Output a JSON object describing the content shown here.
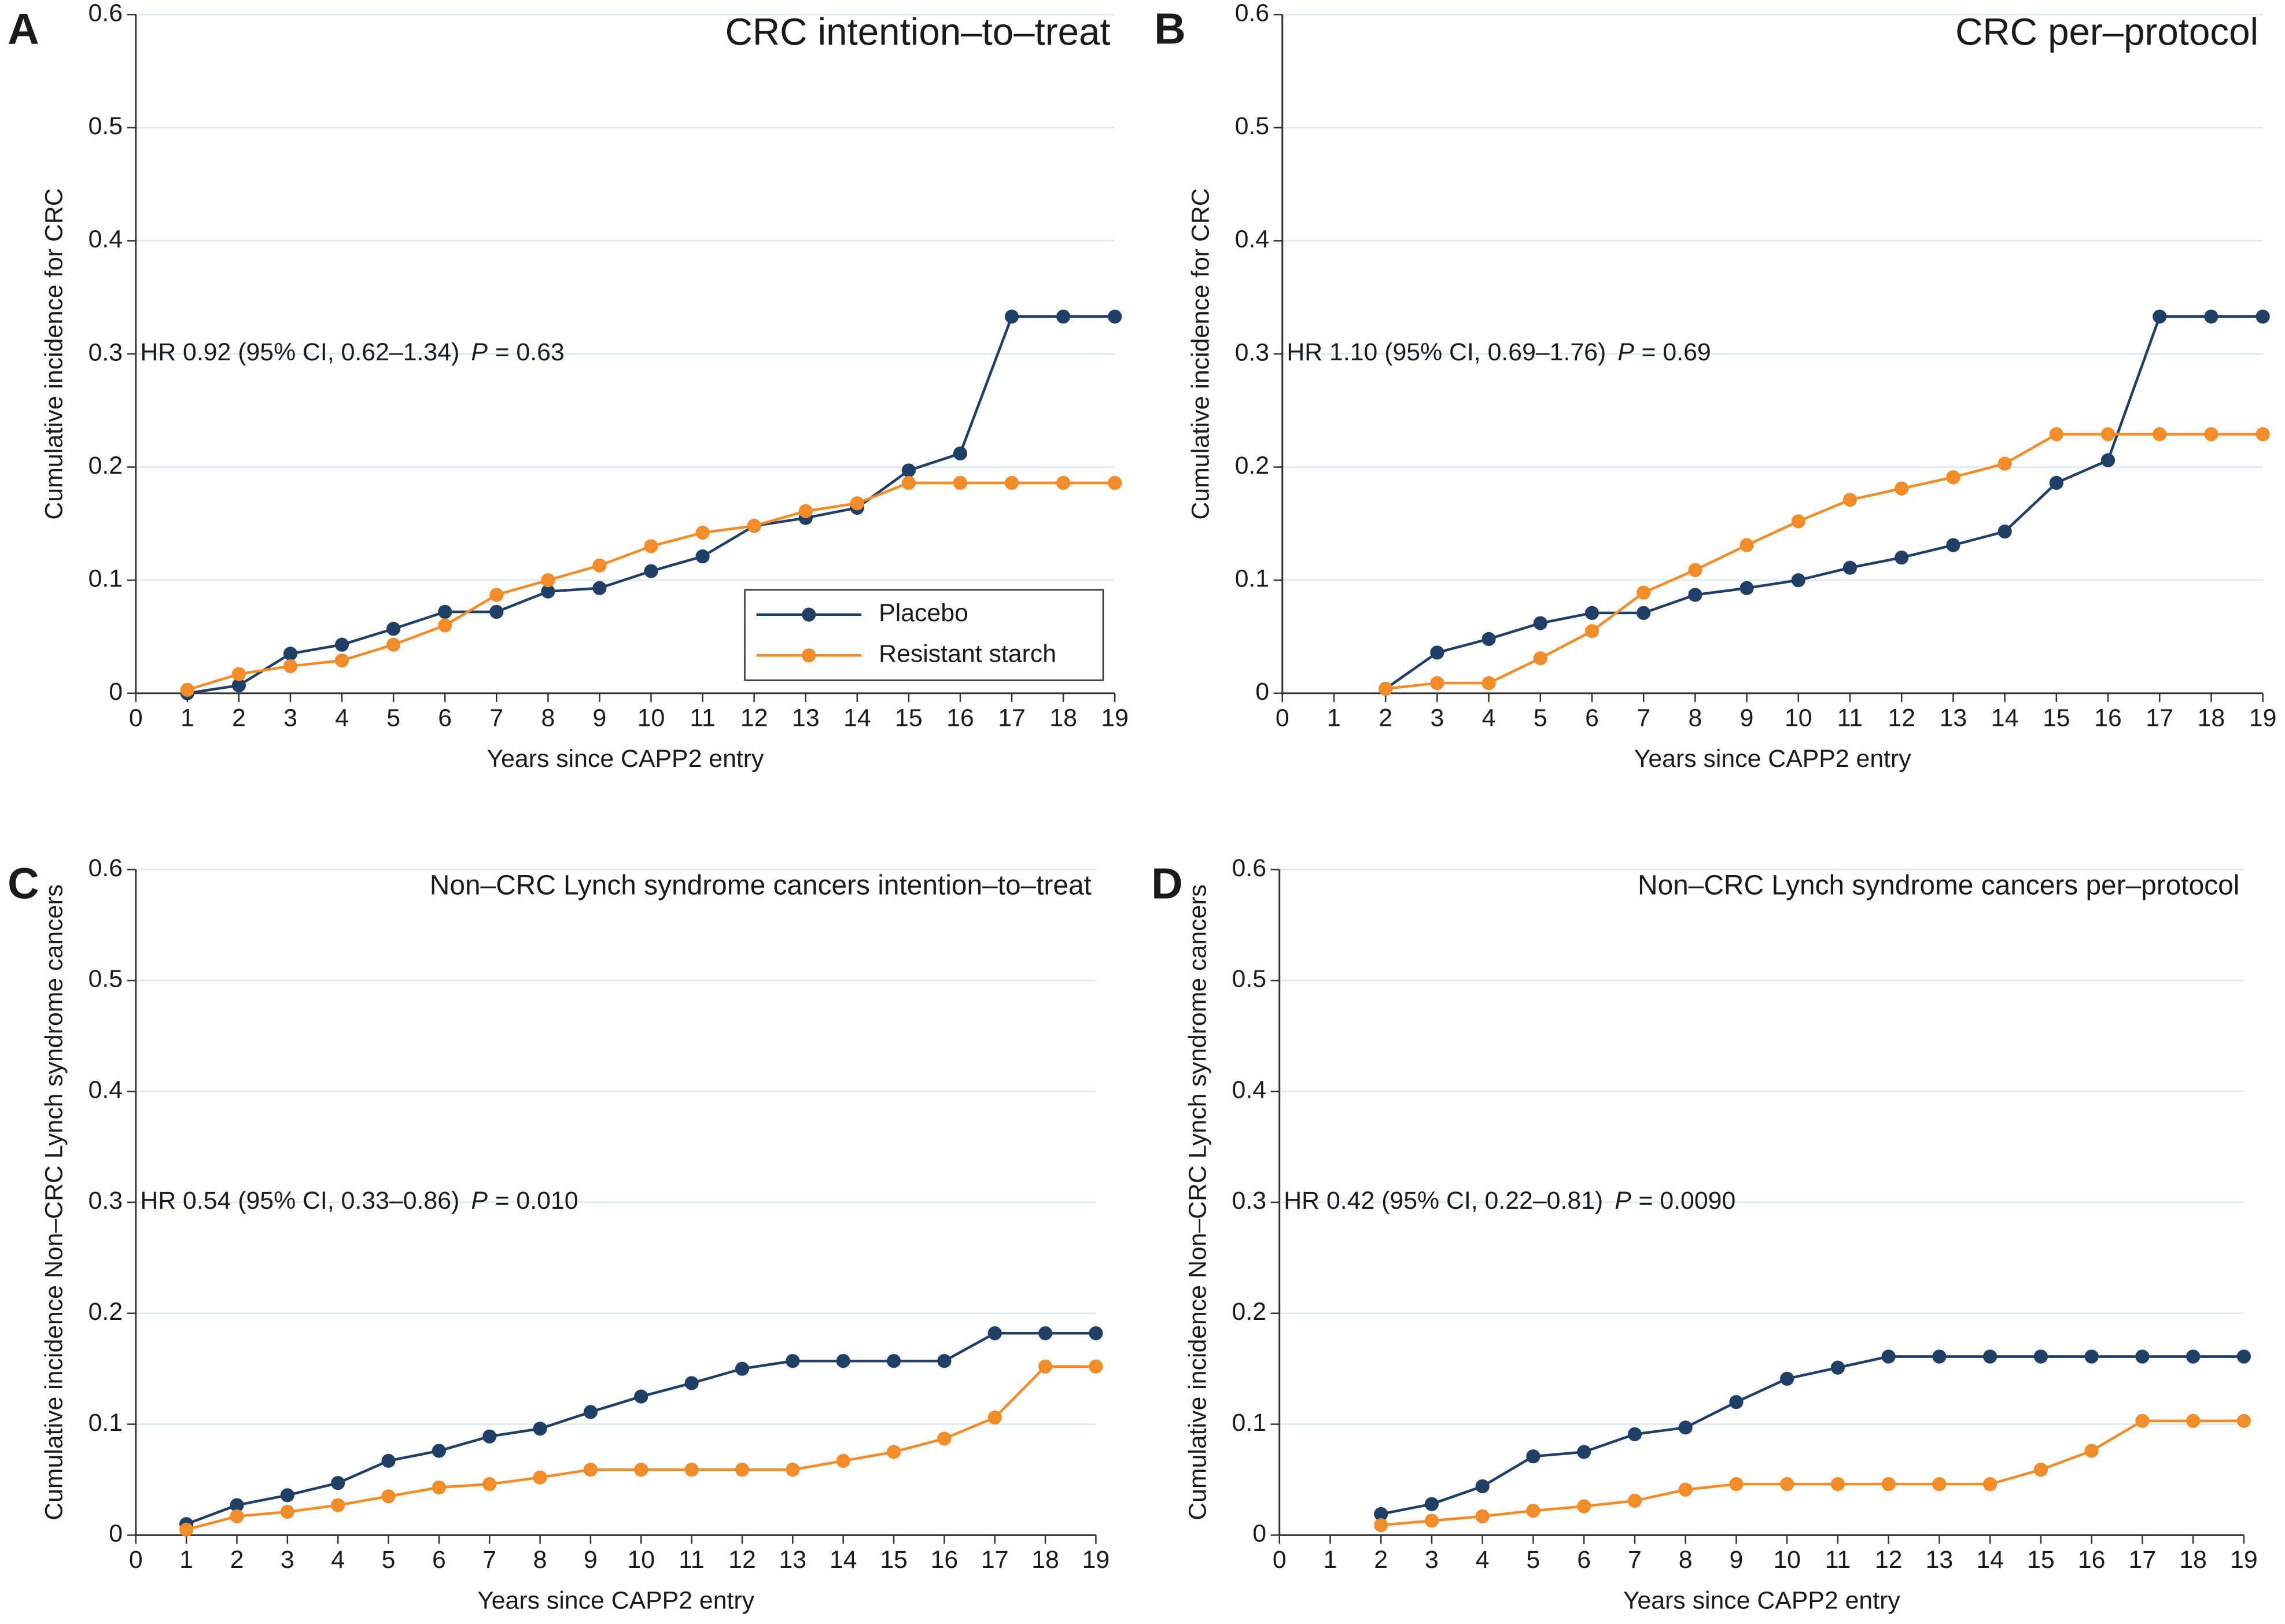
{
  "chart_data": [
    {
      "type": "line",
      "panel": "A",
      "title": "CRC intention–to–treat",
      "title_size": "large",
      "xlabel": "Years since CAPP2 entry",
      "ylabel": "Cumulative incidence for CRC",
      "annotation": {
        "text": "HR 0.92 (95% CI, 0.62–1.34)",
        "p_label": "P",
        "p_value": "= 0.63",
        "y": 0.3
      },
      "xlim": [
        0,
        19
      ],
      "xticks": [
        0,
        1,
        2,
        3,
        4,
        5,
        6,
        7,
        8,
        9,
        10,
        11,
        12,
        13,
        14,
        15,
        16,
        17,
        18,
        19
      ],
      "ylim": [
        0,
        0.6
      ],
      "yticks": [
        0,
        0.1,
        0.2,
        0.3,
        0.4,
        0.5,
        0.6
      ],
      "grid": true,
      "legend": "lower right",
      "series": [
        {
          "name": "Placebo",
          "color": "#1f3f66",
          "x": [
            1,
            2,
            3,
            4,
            5,
            6,
            7,
            8,
            9,
            10,
            11,
            12,
            13,
            14,
            15,
            16,
            17,
            18,
            19
          ],
          "values": [
            0,
            0.007,
            0.035,
            0.043,
            0.057,
            0.072,
            0.072,
            0.09,
            0.093,
            0.108,
            0.121,
            0.148,
            0.155,
            0.164,
            0.197,
            0.212,
            0.333,
            0.333,
            0.333
          ]
        },
        {
          "name": "Resistant starch",
          "color": "#f28c28",
          "x": [
            1,
            2,
            3,
            4,
            5,
            6,
            7,
            8,
            9,
            10,
            11,
            12,
            13,
            14,
            15,
            16,
            17,
            18,
            19
          ],
          "values": [
            0.003,
            0.017,
            0.024,
            0.029,
            0.043,
            0.06,
            0.087,
            0.1,
            0.113,
            0.13,
            0.142,
            0.148,
            0.161,
            0.168,
            0.186,
            0.186,
            0.186,
            0.186,
            0.186
          ]
        }
      ]
    },
    {
      "type": "line",
      "panel": "B",
      "title": "CRC per–protocol",
      "title_size": "large",
      "xlabel": "Years since CAPP2 entry",
      "ylabel": "Cumulative incidence for CRC",
      "annotation": {
        "text": "HR 1.10 (95% CI, 0.69–1.76)",
        "p_label": "P",
        "p_value": "= 0.69",
        "y": 0.3
      },
      "xlim": [
        0,
        19
      ],
      "xticks": [
        0,
        1,
        2,
        3,
        4,
        5,
        6,
        7,
        8,
        9,
        10,
        11,
        12,
        13,
        14,
        15,
        16,
        17,
        18,
        19
      ],
      "ylim": [
        0,
        0.6
      ],
      "yticks": [
        0,
        0.1,
        0.2,
        0.3,
        0.4,
        0.5,
        0.6
      ],
      "grid": true,
      "series": [
        {
          "color": "#1f3f66",
          "x": [
            2,
            3,
            4,
            5,
            6,
            7,
            8,
            9,
            10,
            11,
            12,
            13,
            14,
            15,
            16,
            17,
            18,
            19
          ],
          "values": [
            0.004,
            0.036,
            0.048,
            0.062,
            0.071,
            0.071,
            0.087,
            0.093,
            0.1,
            0.111,
            0.12,
            0.131,
            0.143,
            0.186,
            0.206,
            0.333,
            0.333,
            0.333
          ]
        },
        {
          "color": "#f28c28",
          "x": [
            2,
            3,
            4,
            5,
            6,
            7,
            8,
            9,
            10,
            11,
            12,
            13,
            14,
            15,
            16,
            17,
            18,
            19
          ],
          "values": [
            0.004,
            0.009,
            0.009,
            0.031,
            0.055,
            0.089,
            0.109,
            0.131,
            0.152,
            0.171,
            0.181,
            0.191,
            0.203,
            0.229,
            0.229,
            0.229,
            0.229,
            0.229
          ]
        }
      ]
    },
    {
      "type": "line",
      "panel": "C",
      "title": "Non–CRC Lynch syndrome cancers intention–to–treat",
      "title_size": "small",
      "xlabel": "Years since CAPP2 entry",
      "ylabel": "Cumulative incidence Non–CRC Lynch syndrome cancers",
      "annotation": {
        "text": "HR 0.54 (95% CI, 0.33–0.86)",
        "p_label": "P",
        "p_value": "= 0.010",
        "y": 0.3
      },
      "xlim": [
        0,
        19
      ],
      "xticks": [
        0,
        1,
        2,
        3,
        4,
        5,
        6,
        7,
        8,
        9,
        10,
        11,
        12,
        13,
        14,
        15,
        16,
        17,
        18,
        19
      ],
      "ylim": [
        0,
        0.6
      ],
      "yticks": [
        0,
        0.1,
        0.2,
        0.3,
        0.4,
        0.5,
        0.6
      ],
      "grid": true,
      "series": [
        {
          "color": "#1f3f66",
          "x": [
            1,
            2,
            3,
            4,
            5,
            6,
            7,
            8,
            9,
            10,
            11,
            12,
            13,
            14,
            15,
            16,
            17,
            18,
            19
          ],
          "values": [
            0.01,
            0.027,
            0.036,
            0.047,
            0.067,
            0.076,
            0.089,
            0.096,
            0.111,
            0.125,
            0.137,
            0.15,
            0.157,
            0.157,
            0.157,
            0.157,
            0.182,
            0.182,
            0.182
          ]
        },
        {
          "color": "#f28c28",
          "x": [
            1,
            2,
            3,
            4,
            5,
            6,
            7,
            8,
            9,
            10,
            11,
            12,
            13,
            14,
            15,
            16,
            17,
            18,
            19
          ],
          "values": [
            0.005,
            0.017,
            0.021,
            0.027,
            0.035,
            0.043,
            0.046,
            0.052,
            0.059,
            0.059,
            0.059,
            0.059,
            0.059,
            0.067,
            0.075,
            0.087,
            0.106,
            0.152,
            0.152
          ]
        }
      ]
    },
    {
      "type": "line",
      "panel": "D",
      "title": "Non–CRC Lynch syndrome cancers per–protocol",
      "title_size": "small",
      "xlabel": "Years since CAPP2 entry",
      "ylabel": "Cumulative incidence Non–CRC Lynch syndrome cancers",
      "annotation": {
        "text": "HR 0.42 (95% CI, 0.22–0.81)",
        "p_label": "P",
        "p_value": "= 0.0090",
        "y": 0.3
      },
      "xlim": [
        0,
        19
      ],
      "xticks": [
        0,
        1,
        2,
        3,
        4,
        5,
        6,
        7,
        8,
        9,
        10,
        11,
        12,
        13,
        14,
        15,
        16,
        17,
        18,
        19
      ],
      "ylim": [
        0,
        0.6
      ],
      "yticks": [
        0,
        0.1,
        0.2,
        0.3,
        0.4,
        0.5,
        0.6
      ],
      "grid": true,
      "series": [
        {
          "color": "#1f3f66",
          "x": [
            2,
            3,
            4,
            5,
            6,
            7,
            8,
            9,
            10,
            11,
            12,
            13,
            14,
            15,
            16,
            17,
            18,
            19
          ],
          "values": [
            0.019,
            0.028,
            0.044,
            0.071,
            0.075,
            0.091,
            0.097,
            0.12,
            0.141,
            0.151,
            0.161,
            0.161,
            0.161,
            0.161,
            0.161,
            0.161,
            0.161,
            0.161
          ]
        },
        {
          "color": "#f28c28",
          "x": [
            2,
            3,
            4,
            5,
            6,
            7,
            8,
            9,
            10,
            11,
            12,
            13,
            14,
            15,
            16,
            17,
            18,
            19
          ],
          "values": [
            0.009,
            0.013,
            0.017,
            0.022,
            0.026,
            0.031,
            0.041,
            0.046,
            0.046,
            0.046,
            0.046,
            0.046,
            0.046,
            0.059,
            0.076,
            0.103,
            0.103,
            0.103
          ]
        }
      ]
    }
  ]
}
